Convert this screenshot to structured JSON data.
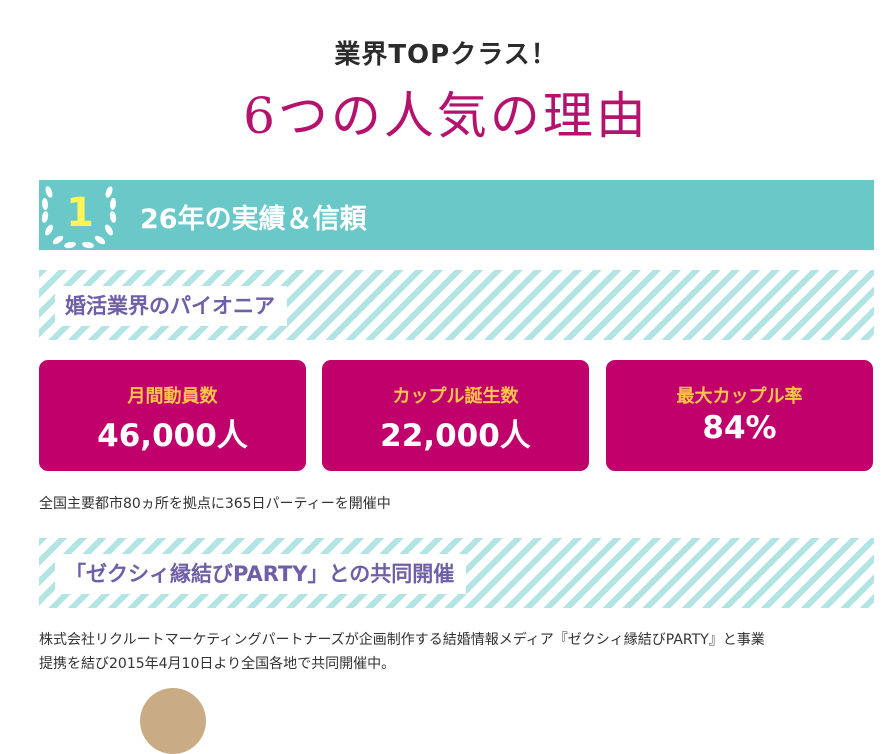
{
  "heading": {
    "small": "業界TOPクラス！",
    "large": "6つの人気の理由"
  },
  "reason": {
    "number": "1",
    "title": "26年の実績＆信頼",
    "laurel_icon": "laurel-wreath-icon",
    "bar_color": "#6ac8c8",
    "number_color": "#fff45a"
  },
  "sections": [
    {
      "label": "婚活業界のパイオニア"
    },
    {
      "label": "「ゼクシィ縁結びPARTY」との共同開催"
    }
  ],
  "stats": [
    {
      "label": "月間動員数",
      "value": "46,000人"
    },
    {
      "label": "カップル誕生数",
      "value": "22,000人"
    },
    {
      "label": "最大カップル率",
      "value": "84%"
    }
  ],
  "texts": {
    "network": "全国主要都市80ヵ所を拠点に365日パーティーを開催中",
    "partner_line1": "株式会社リクルートマーケティングパートナーズが企画制作する結婚情報メディア『ゼクシィ縁結びPARTY』と事業",
    "partner_line2": "提携を結び2015年4月10日より全国各地で共同開催中。"
  },
  "colors": {
    "accent": "#b5126e",
    "card": "#c0006b",
    "card_label": "#ffc44a",
    "teal": "#6ac8c8",
    "stripe": "#b3e4e4",
    "section_label": "#6e5fa8"
  }
}
